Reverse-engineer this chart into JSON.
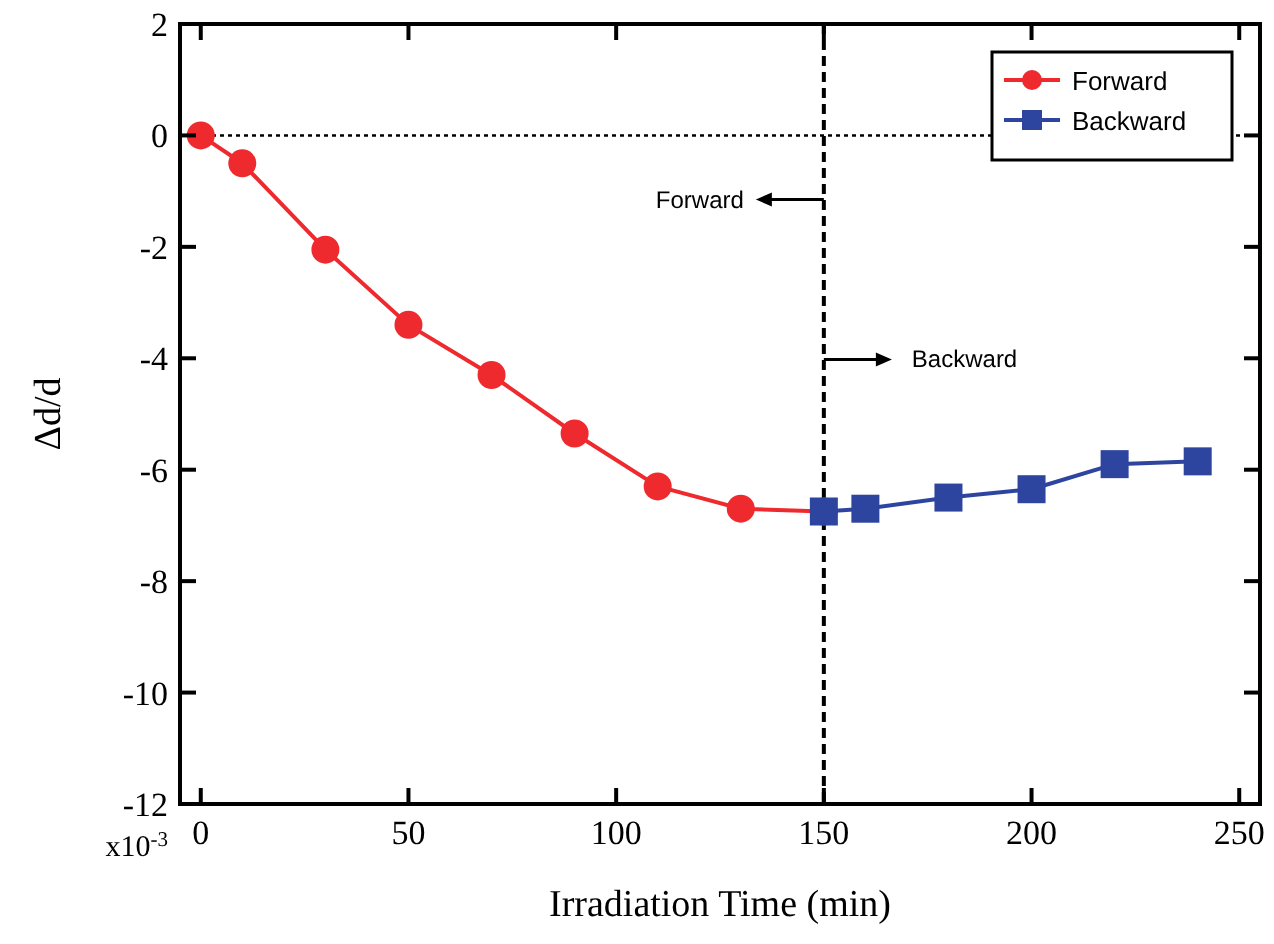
{
  "chart_data": {
    "type": "line",
    "xlabel": "Irradiation Time (min)",
    "ylabel": "Δd/d",
    "xlim": [
      -5,
      255
    ],
    "xticks": [
      0,
      50,
      100,
      150,
      200,
      250
    ],
    "ylim": [
      -12,
      2
    ],
    "yticks": [
      2,
      0,
      -2,
      -4,
      -6,
      -8,
      -10,
      -12
    ],
    "legend": "top right",
    "line_style": "solid",
    "grid": false,
    "series": [
      {
        "name": "Forward",
        "color": "#ee2a2f",
        "marker": "circle",
        "x": [
          0,
          10,
          30,
          50,
          70,
          90,
          110,
          130,
          150
        ],
        "values": [
          0,
          -0.5,
          -2.05,
          -3.4,
          -4.3,
          -5.35,
          -6.3,
          -6.7,
          -6.75
        ]
      },
      {
        "name": "Backward",
        "color": "#2e45a0",
        "marker": "square",
        "x": [
          150,
          160,
          180,
          200,
          220,
          240
        ],
        "values": [
          -6.75,
          -6.7,
          -6.5,
          -6.35,
          -5.9,
          -5.85
        ]
      }
    ],
    "ref_lines": [
      {
        "axis": "y",
        "value": 0,
        "line_style": "dotted",
        "color": "#000000"
      },
      {
        "axis": "x",
        "value": 150,
        "line_style": "dashed",
        "color": "#000000"
      }
    ],
    "annotations": [
      "Forward",
      "Backward",
      "x10$^{-3}$"
    ]
  }
}
